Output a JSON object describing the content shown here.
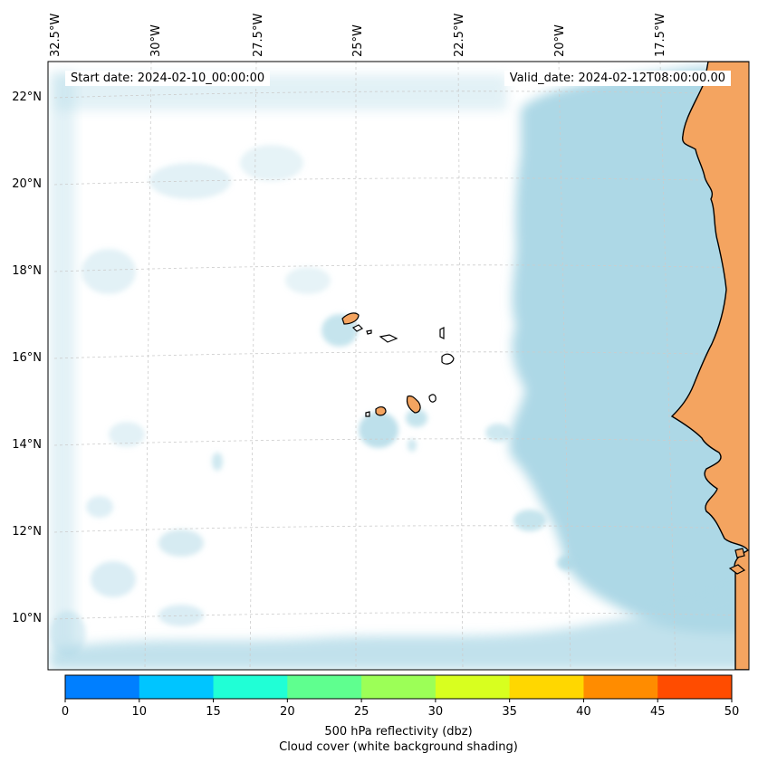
{
  "map": {
    "lon_labels": [
      "32.5°W",
      "30°W",
      "27.5°W",
      "25°W",
      "22.5°W",
      "20°W",
      "17.5°W"
    ],
    "lat_labels": [
      "22°N",
      "20°N",
      "18°N",
      "16°N",
      "14°N",
      "12°N",
      "10°N"
    ],
    "start_date": "Start date: 2024-02-10_00:00:00",
    "valid_date": "Valid_date: 2024-02-12T08:00:00.00",
    "land_color": "#f4a460",
    "cloud_color": "#add8e6",
    "gridline_color": "#cccccc"
  },
  "colorbar": {
    "ticks": [
      "0",
      "10",
      "15",
      "20",
      "25",
      "30",
      "35",
      "40",
      "45",
      "50"
    ],
    "colors": [
      "#007fff",
      "#00c5ff",
      "#20ffd6",
      "#5fff8f",
      "#9cff57",
      "#d8ff1f",
      "#ffd700",
      "#ff8c00",
      "#ff4c00"
    ],
    "label": "500 hPa reflectivity (dbz)",
    "sublabel": "Cloud cover (white background shading)"
  }
}
